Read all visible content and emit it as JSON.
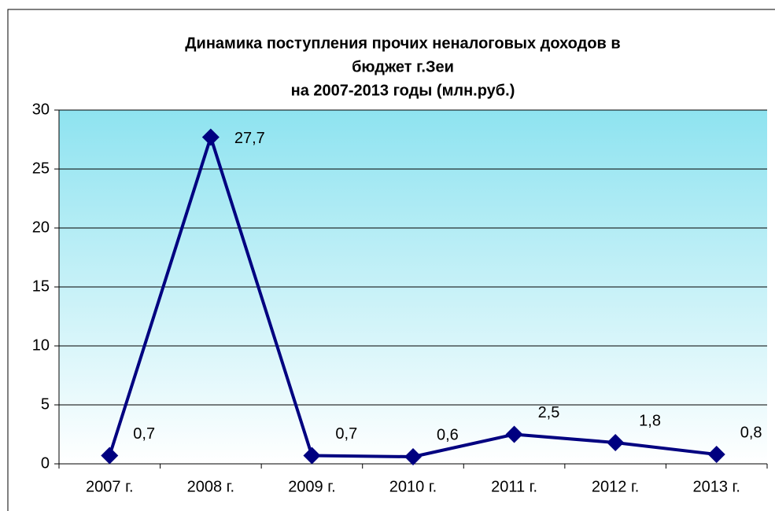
{
  "chart_data": {
    "type": "line",
    "title": [
      "Динамика поступления прочих неналоговых доходов в",
      "бюджет г.Зеи",
      "на 2007-2013 годы (млн.руб.)"
    ],
    "categories": [
      "2007 г.",
      "2008 г.",
      "2009 г.",
      "2010 г.",
      "2011 г.",
      "2012 г.",
      "2013 г."
    ],
    "values": [
      0.7,
      27.7,
      0.7,
      0.6,
      2.5,
      1.8,
      0.8
    ],
    "value_labels": [
      "0,7",
      "27,7",
      "0,7",
      "0,6",
      "2,5",
      "1,8",
      "0,8"
    ],
    "color": "#000080",
    "ylim": [
      0,
      30
    ],
    "yticks": [
      0,
      5,
      10,
      15,
      20,
      25,
      30
    ],
    "grid": true
  }
}
